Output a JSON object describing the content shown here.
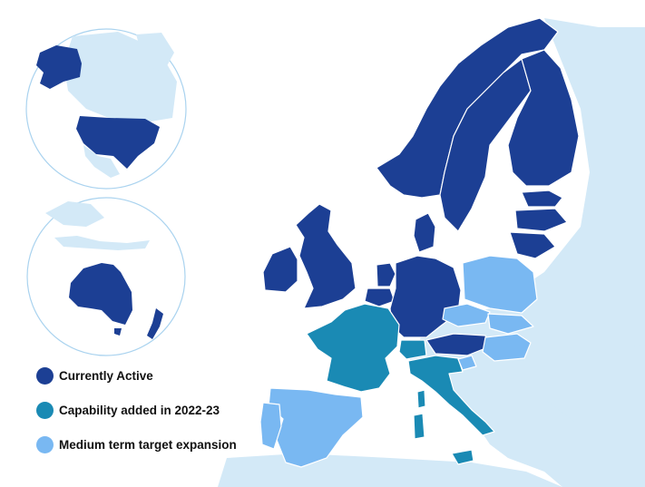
{
  "colors": {
    "active": "#1c3f94",
    "added": "#1a8ab4",
    "target": "#79b8f2",
    "land": "#d3e9f7",
    "borders": "#ffffff",
    "globe_outline": "#aad3ef"
  },
  "legend": {
    "items": [
      {
        "label": "Currently Active",
        "status": "active",
        "color": "#1c3f94"
      },
      {
        "label": "Capability added in 2022-23",
        "status": "added",
        "color": "#1a8ab4"
      },
      {
        "label": "Medium term target expansion",
        "status": "target",
        "color": "#79b8f2"
      }
    ]
  },
  "regions": {
    "north_america_globe": {
      "highlighted": [
        "United States",
        "Alaska"
      ]
    },
    "oceania_globe": {
      "highlighted": [
        "Australia",
        "New Zealand"
      ]
    },
    "europe": {
      "active": [
        "Norway",
        "Sweden",
        "Finland",
        "Denmark",
        "Estonia",
        "Latvia",
        "Lithuania",
        "United Kingdom",
        "Ireland",
        "Netherlands",
        "Belgium",
        "Luxembourg",
        "Germany",
        "Austria"
      ],
      "added": [
        "France",
        "Switzerland",
        "Italy"
      ],
      "target": [
        "Spain",
        "Portugal",
        "Poland",
        "Czech Republic",
        "Slovakia",
        "Hungary",
        "Slovenia"
      ]
    }
  }
}
